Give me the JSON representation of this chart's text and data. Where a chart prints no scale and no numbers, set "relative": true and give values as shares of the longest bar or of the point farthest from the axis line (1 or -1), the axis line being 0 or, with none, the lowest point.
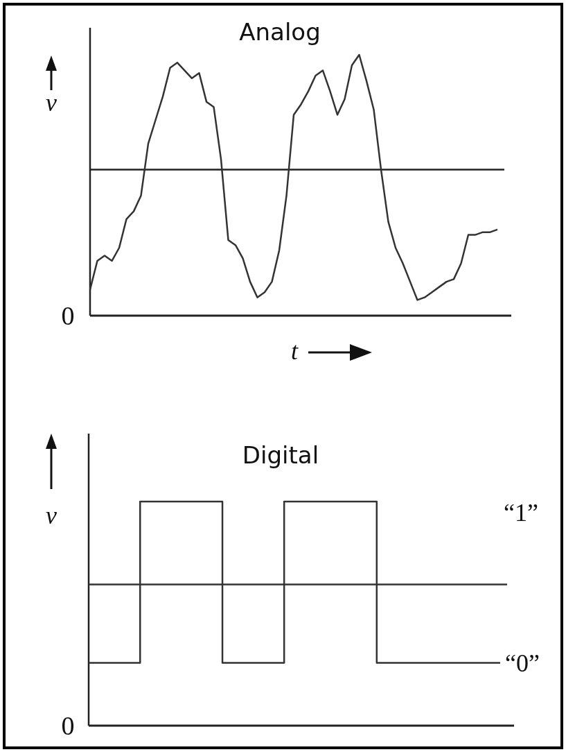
{
  "chart_data": [
    {
      "type": "line",
      "title": "Analog",
      "xlabel": "t",
      "ylabel": "v",
      "relative": true,
      "color": "#333333",
      "categories": [
        null,
        null,
        null,
        null,
        null,
        null,
        null,
        null,
        null,
        null,
        null,
        null,
        null,
        null,
        null,
        null,
        null,
        null,
        null,
        null,
        null,
        null,
        null,
        null,
        null,
        null,
        null,
        null,
        null,
        null,
        null,
        null,
        null,
        null,
        null,
        null,
        null,
        null,
        null,
        null,
        null,
        null,
        null,
        null,
        null,
        null,
        null,
        null,
        null,
        null,
        null,
        null,
        null,
        null,
        null,
        null,
        null
      ],
      "values": [
        0.1,
        0.21,
        0.23,
        0.21,
        0.26,
        0.37,
        0.4,
        0.46,
        0.66,
        0.75,
        0.84,
        0.95,
        0.97,
        0.94,
        0.91,
        0.93,
        0.82,
        0.8,
        0.6,
        0.29,
        0.27,
        0.22,
        0.13,
        0.07,
        0.09,
        0.13,
        0.25,
        0.46,
        0.77,
        0.81,
        0.86,
        0.92,
        0.94,
        0.86,
        0.77,
        0.83,
        0.96,
        1.0,
        0.9,
        0.79,
        0.56,
        0.36,
        0.26,
        0.2,
        0.13,
        0.06,
        0.07,
        0.09,
        0.11,
        0.13,
        0.14,
        0.2,
        0.31,
        0.31,
        0.32,
        0.32,
        0.33
      ],
      "ref_lines": [
        {
          "axis": "y",
          "value": 0.56,
          "color": "#222222"
        }
      ],
      "annotations": [
        "0"
      ]
    },
    {
      "type": "step",
      "title": "Digital",
      "ylabel": "v",
      "relative": true,
      "color": "#333333",
      "categories": [
        null,
        null,
        null,
        null,
        null,
        null,
        null,
        null,
        null,
        null,
        null,
        null,
        null,
        null,
        null,
        null,
        null,
        null,
        null,
        null,
        null,
        null,
        null,
        null,
        null,
        null,
        null,
        null,
        null,
        null,
        null,
        null,
        null,
        null,
        null,
        null,
        null,
        null,
        null,
        null,
        null
      ],
      "values": [
        0.28,
        0.28,
        0.28,
        0.28,
        0.28,
        1,
        1,
        1,
        1,
        1,
        1,
        1,
        1,
        0.28,
        0.28,
        0.28,
        0.28,
        0.28,
        0.28,
        1,
        1,
        1,
        1,
        1,
        1,
        1,
        1,
        1,
        0.28,
        0.28,
        0.28,
        0.28,
        0.28,
        0.28,
        0.28,
        0.28,
        0.28,
        0.28,
        0.28,
        0.28,
        0.28
      ],
      "ref_lines": [
        {
          "axis": "y",
          "value": 0.63
        }
      ],
      "annotations": [
        "“1”",
        "“0”",
        "0"
      ]
    }
  ]
}
